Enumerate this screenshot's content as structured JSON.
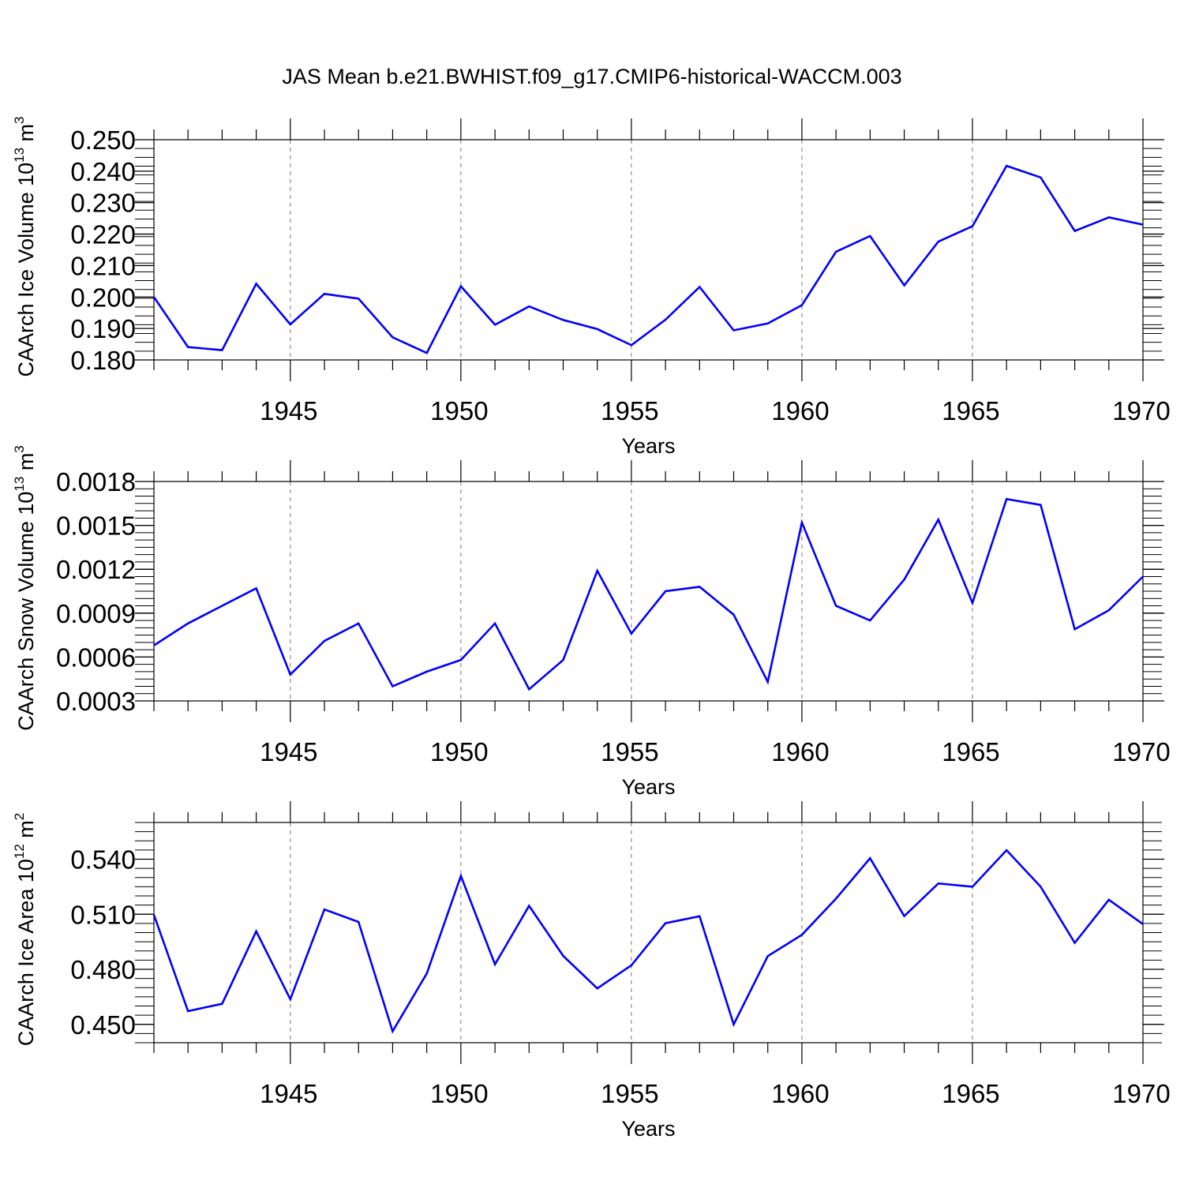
{
  "chart_data": [
    {
      "type": "line",
      "title": "JAS Mean b.e21.BWHIST.f09_g17.CMIP6-historical-WACCM.003",
      "xlabel": "Years",
      "ylabel": {
        "prefix": "CAArch Ice Volume 10",
        "exponent": "13",
        "unit": " m",
        "unit_exponent": "3"
      },
      "xlim": [
        1941,
        1970
      ],
      "ylim": [
        0.18,
        0.25
      ],
      "xticks": [
        1945,
        1950,
        1955,
        1960,
        1965,
        1970
      ],
      "yticks": [
        0.18,
        0.19,
        0.2,
        0.21,
        0.22,
        0.23,
        0.24,
        0.25
      ],
      "ytick_labels": [
        "0.180",
        "0.190",
        "0.200",
        "0.210",
        "0.220",
        "0.230",
        "0.240",
        "0.250"
      ],
      "series": [
        {
          "name": "CAArch Ice Volume",
          "color": "#0000ff",
          "x": [
            1941,
            1942,
            1943,
            1944,
            1945,
            1946,
            1947,
            1948,
            1949,
            1950,
            1951,
            1952,
            1953,
            1954,
            1955,
            1956,
            1957,
            1958,
            1959,
            1960,
            1961,
            1962,
            1963,
            1964,
            1965,
            1966,
            1967,
            1968,
            1969,
            1970
          ],
          "values": [
            0.2,
            0.1841,
            0.1831,
            0.2042,
            0.1913,
            0.201,
            0.1995,
            0.1872,
            0.1822,
            0.2034,
            0.1912,
            0.197,
            0.1927,
            0.1898,
            0.1847,
            0.1928,
            0.2032,
            0.1894,
            0.1916,
            0.1974,
            0.2144,
            0.2194,
            0.2037,
            0.2176,
            0.2225,
            0.2417,
            0.238,
            0.221,
            0.2253,
            0.223
          ]
        }
      ],
      "grid": "dashed vertical lines at major x ticks"
    },
    {
      "type": "line",
      "title": "",
      "xlabel": "Years",
      "ylabel": {
        "prefix": "CAArch Snow Volume 10",
        "exponent": "13",
        "unit": " m",
        "unit_exponent": "3"
      },
      "xlim": [
        1941,
        1970
      ],
      "ylim": [
        0.0003,
        0.0018
      ],
      "xticks": [
        1945,
        1950,
        1955,
        1960,
        1965,
        1970
      ],
      "yticks": [
        0.0003,
        0.0006,
        0.0009,
        0.0012,
        0.0015,
        0.0018
      ],
      "ytick_labels": [
        "0.0003",
        "0.0006",
        "0.0009",
        "0.0012",
        "0.0015",
        "0.0018"
      ],
      "series": [
        {
          "name": "CAArch Snow Volume",
          "color": "#0000ff",
          "x": [
            1941,
            1942,
            1943,
            1944,
            1945,
            1946,
            1947,
            1948,
            1949,
            1950,
            1951,
            1952,
            1953,
            1954,
            1955,
            1956,
            1957,
            1958,
            1959,
            1960,
            1961,
            1962,
            1963,
            1964,
            1965,
            1966,
            1967,
            1968,
            1969,
            1970
          ],
          "values": [
            0.00068,
            0.00083,
            0.00095,
            0.00107,
            0.00048,
            0.00071,
            0.00083,
            0.0004,
            0.0005,
            0.00058,
            0.00083,
            0.00038,
            0.00058,
            0.00119,
            0.00076,
            0.00105,
            0.00108,
            0.00089,
            0.00043,
            0.00152,
            0.00095,
            0.00085,
            0.00113,
            0.00154,
            0.00097,
            0.00168,
            0.00164,
            0.00079,
            0.00092,
            0.00115
          ]
        }
      ],
      "grid": "dashed vertical lines at major x ticks"
    },
    {
      "type": "line",
      "title": "",
      "xlabel": "Years",
      "ylabel": {
        "prefix": "CAArch Ice Area 10",
        "exponent": "12",
        "unit": " m",
        "unit_exponent": "2"
      },
      "xlim": [
        1941,
        1970
      ],
      "ylim": [
        0.44,
        0.56
      ],
      "xticks": [
        1945,
        1950,
        1955,
        1960,
        1965,
        1970
      ],
      "yticks": [
        0.45,
        0.48,
        0.51,
        0.54
      ],
      "ytick_labels": [
        "0.450",
        "0.480",
        "0.510",
        "0.540"
      ],
      "series": [
        {
          "name": "CAArch Ice Area",
          "color": "#0000ff",
          "x": [
            1941,
            1942,
            1943,
            1944,
            1945,
            1946,
            1947,
            1948,
            1949,
            1950,
            1951,
            1952,
            1953,
            1954,
            1955,
            1956,
            1957,
            1958,
            1959,
            1960,
            1961,
            1962,
            1963,
            1964,
            1965,
            1966,
            1967,
            1968,
            1969,
            1970
          ],
          "values": [
            0.5097,
            0.4572,
            0.4612,
            0.5007,
            0.4637,
            0.5126,
            0.5058,
            0.4462,
            0.4777,
            0.5309,
            0.4827,
            0.5146,
            0.4873,
            0.4696,
            0.4822,
            0.5051,
            0.5089,
            0.45,
            0.4872,
            0.4988,
            0.5185,
            0.5405,
            0.509,
            0.5268,
            0.525,
            0.5449,
            0.525,
            0.4944,
            0.5179,
            0.5046
          ]
        }
      ],
      "grid": "dashed vertical lines at major x ticks"
    }
  ]
}
